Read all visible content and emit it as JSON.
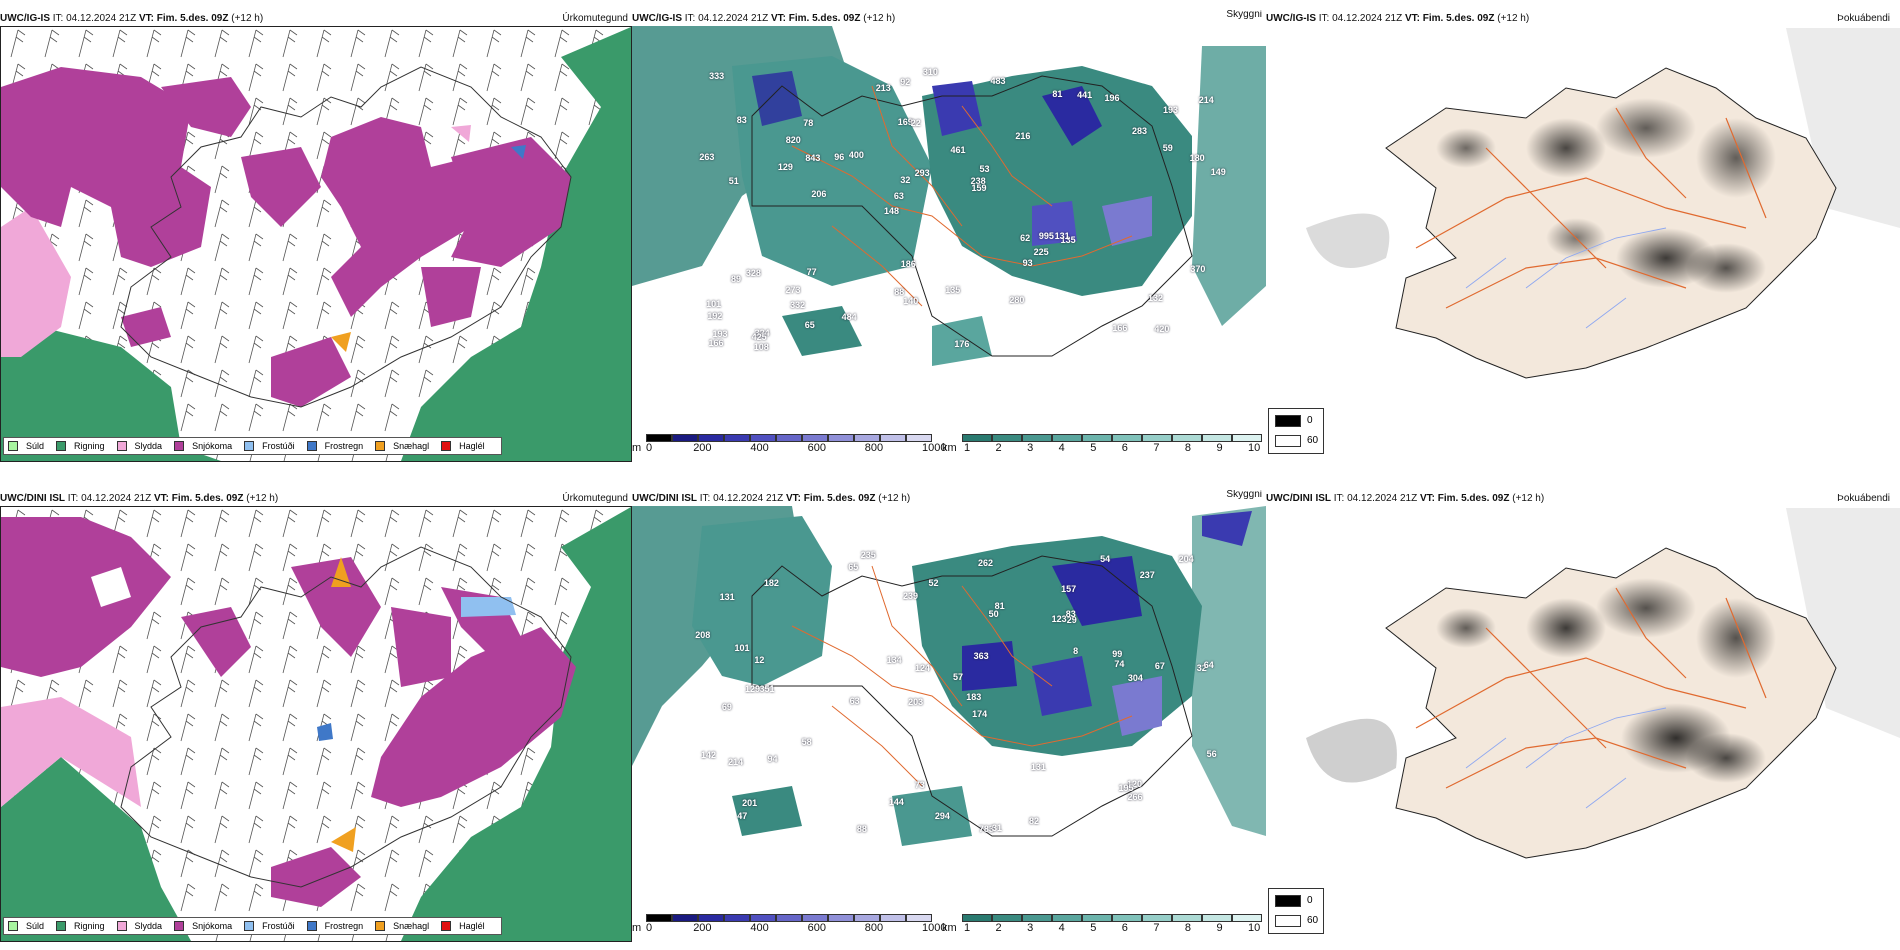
{
  "rows": [
    {
      "model": "UWC/IG-IS",
      "it_text": "IT: 04.12.2024 21Z",
      "vt_text": "VT: Fim. 5.des. 09Z",
      "lead_text": "(+12 h)",
      "panel_titles": [
        "Úrkomutegund",
        "Skyggni",
        "Þokuábendi"
      ],
      "cloud_numbers": [
        "420",
        "51",
        "193",
        "148",
        "216",
        "324",
        "169",
        "461",
        "328",
        "400",
        "192",
        "332",
        "22",
        "53",
        "135",
        "83",
        "92",
        "149",
        "62",
        "59",
        "63",
        "88",
        "32",
        "78",
        "81",
        "77",
        "166",
        "132",
        "131",
        "176",
        "96",
        "129",
        "93",
        "65",
        "180",
        "238",
        "193",
        "140",
        "159",
        "89",
        "283",
        "214",
        "225",
        "280",
        "273",
        "108",
        "166",
        "135",
        "196",
        "310",
        "206",
        "263",
        "820",
        "441",
        "425",
        "483",
        "213",
        "293",
        "370",
        "186",
        "484",
        "995",
        "843",
        "101",
        "333"
      ]
    },
    {
      "model": "UWC/DINI ISL",
      "it_text": "IT: 04.12.2024 21Z",
      "vt_text": "VT: Fim. 5.des. 09Z",
      "lead_text": "(+12 h)",
      "panel_titles": [
        "Úrkomutegund",
        "Skyggni",
        "Þokuábendi"
      ],
      "cloud_numbers": [
        "235",
        "157",
        "32",
        "203",
        "174",
        "351",
        "131",
        "123",
        "69",
        "50",
        "57",
        "47",
        "65",
        "63",
        "783",
        "31",
        "73",
        "54",
        "8",
        "58",
        "12",
        "129",
        "64",
        "67",
        "142",
        "101",
        "124",
        "74",
        "120",
        "214",
        "195",
        "81",
        "94",
        "134",
        "131",
        "56",
        "99",
        "144",
        "204",
        "52",
        "201",
        "88",
        "82",
        "182",
        "294",
        "29",
        "266",
        "83",
        "208",
        "183",
        "239",
        "304",
        "363",
        "237",
        "262"
      ]
    }
  ],
  "precip_legend": [
    {
      "label": "Súld",
      "color": "#a8f5a0"
    },
    {
      "label": "Rigning",
      "color": "#3a9a6a"
    },
    {
      "label": "Slydda",
      "color": "#f0a8d8"
    },
    {
      "label": "Snjókoma",
      "color": "#b0409a"
    },
    {
      "label": "Frostúði",
      "color": "#90c0f0"
    },
    {
      "label": "Frostregn",
      "color": "#3f78c8"
    },
    {
      "label": "Snæhagl",
      "color": "#f0a020"
    },
    {
      "label": "Haglél",
      "color": "#e01010"
    }
  ],
  "cloud_colorbar": {
    "unit": "m",
    "ticks": [
      "0",
      "200",
      "400",
      "600",
      "800",
      "1000"
    ],
    "colors": [
      "#000000",
      "#1a1a80",
      "#2a2aa0",
      "#3a3ab0",
      "#5050c0",
      "#6666c8",
      "#7a7ad0",
      "#9090d8",
      "#a8a8e0",
      "#c0c0e8",
      "#d8d8f0"
    ]
  },
  "vis_colorbar": {
    "unit": "km",
    "ticks": [
      "1",
      "2",
      "3",
      "4",
      "5",
      "6",
      "7",
      "8",
      "9",
      "10"
    ],
    "colors": [
      "#2a7a70",
      "#3a8a80",
      "#4a9890",
      "#5aa69e",
      "#6cb4ac",
      "#80c2ba",
      "#96cec8",
      "#acdad4",
      "#c4e6e2",
      "#dcf2f0"
    ]
  },
  "fog_legend": {
    "ticks": [
      "0",
      "60"
    ],
    "colors": [
      "#000000",
      "#ffffff"
    ]
  },
  "colors": {
    "snow": "#b0409a",
    "rain": "#3a9a6a",
    "sleet": "#f0a8d8",
    "ice_pellets": "#f0a020",
    "freezing_rain": "#3f78c8",
    "freezing_drizzle": "#90c0f0",
    "low_vis": "#3a8a80",
    "low_cloud": "#2a2aa0",
    "land_fog": "#f3e8dc",
    "roads": "#e06a30"
  }
}
